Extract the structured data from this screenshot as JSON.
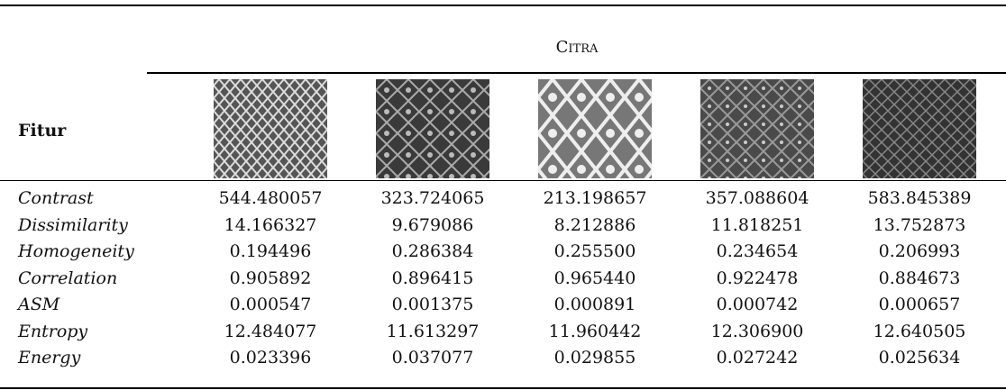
{
  "table": {
    "column_group": "Citra",
    "row_header": "Fitur",
    "rows": [
      [
        "Contrast",
        "544.480057",
        "323.724065",
        "213.198657",
        "357.088604",
        "583.845389"
      ],
      [
        "Dissimilarity",
        "14.166327",
        "9.679086",
        "8.212886",
        "11.818251",
        "13.752873"
      ],
      [
        "Homogeneity",
        "0.194496",
        "0.286384",
        "0.255500",
        "0.234654",
        "0.206993"
      ],
      [
        "Correlation",
        "0.905892",
        "0.896415",
        "0.965440",
        "0.922478",
        "0.884673"
      ],
      [
        "ASM",
        "0.000547",
        "0.001375",
        "0.000891",
        "0.000742",
        "0.000657"
      ],
      [
        "Entropy",
        "12.484077",
        "11.613297",
        "11.960442",
        "12.306900",
        "12.640505"
      ],
      [
        "Energy",
        "0.023396",
        "0.037077",
        "0.029855",
        "0.027242",
        "0.025634"
      ]
    ]
  }
}
